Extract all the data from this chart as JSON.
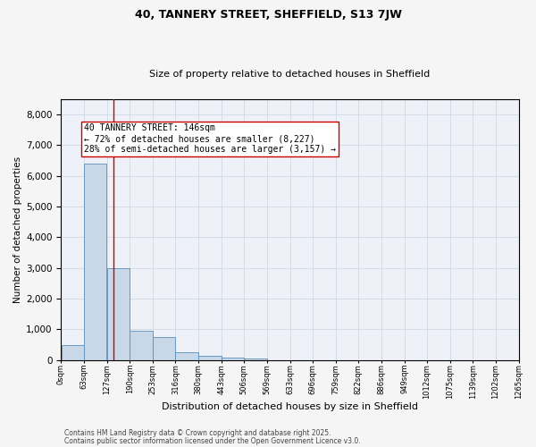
{
  "title1": "40, TANNERY STREET, SHEFFIELD, S13 7JW",
  "title2": "Size of property relative to detached houses in Sheffield",
  "xlabel": "Distribution of detached houses by size in Sheffield",
  "ylabel": "Number of detached properties",
  "bar_values": [
    500,
    6400,
    3000,
    950,
    750,
    250,
    130,
    80,
    60,
    0,
    0,
    0,
    0,
    0,
    0,
    0,
    0,
    0,
    0,
    0
  ],
  "bin_edges": [
    0,
    63,
    127,
    190,
    253,
    316,
    380,
    443,
    506,
    569,
    633,
    696,
    759,
    822,
    886,
    949,
    1012,
    1075,
    1139,
    1202,
    1265
  ],
  "tick_labels": [
    "0sqm",
    "63sqm",
    "127sqm",
    "190sqm",
    "253sqm",
    "316sqm",
    "380sqm",
    "443sqm",
    "506sqm",
    "569sqm",
    "633sqm",
    "696sqm",
    "759sqm",
    "822sqm",
    "886sqm",
    "949sqm",
    "1012sqm",
    "1075sqm",
    "1139sqm",
    "1202sqm",
    "1265sqm"
  ],
  "bar_color": "#c8d8e8",
  "bar_edge_color": "#5b8db8",
  "grid_color": "#d0d8e8",
  "background_color": "#eef2f8",
  "fig_background": "#f5f5f5",
  "vline_x": 146,
  "vline_color": "#cc0000",
  "annotation_text": "40 TANNERY STREET: 146sqm\n← 72% of detached houses are smaller (8,227)\n28% of semi-detached houses are larger (3,157) →",
  "annotation_box_color": "#ffffff",
  "annotation_box_edge": "#cc0000",
  "ylim": [
    0,
    8500
  ],
  "yticks": [
    0,
    1000,
    2000,
    3000,
    4000,
    5000,
    6000,
    7000,
    8000
  ],
  "footer1": "Contains HM Land Registry data © Crown copyright and database right 2025.",
  "footer2": "Contains public sector information licensed under the Open Government Licence v3.0.",
  "title1_fontsize": 9,
  "title2_fontsize": 8,
  "ylabel_fontsize": 7.5,
  "xlabel_fontsize": 8,
  "ytick_fontsize": 7.5,
  "xtick_fontsize": 6,
  "footer_fontsize": 5.5,
  "ann_fontsize": 7
}
